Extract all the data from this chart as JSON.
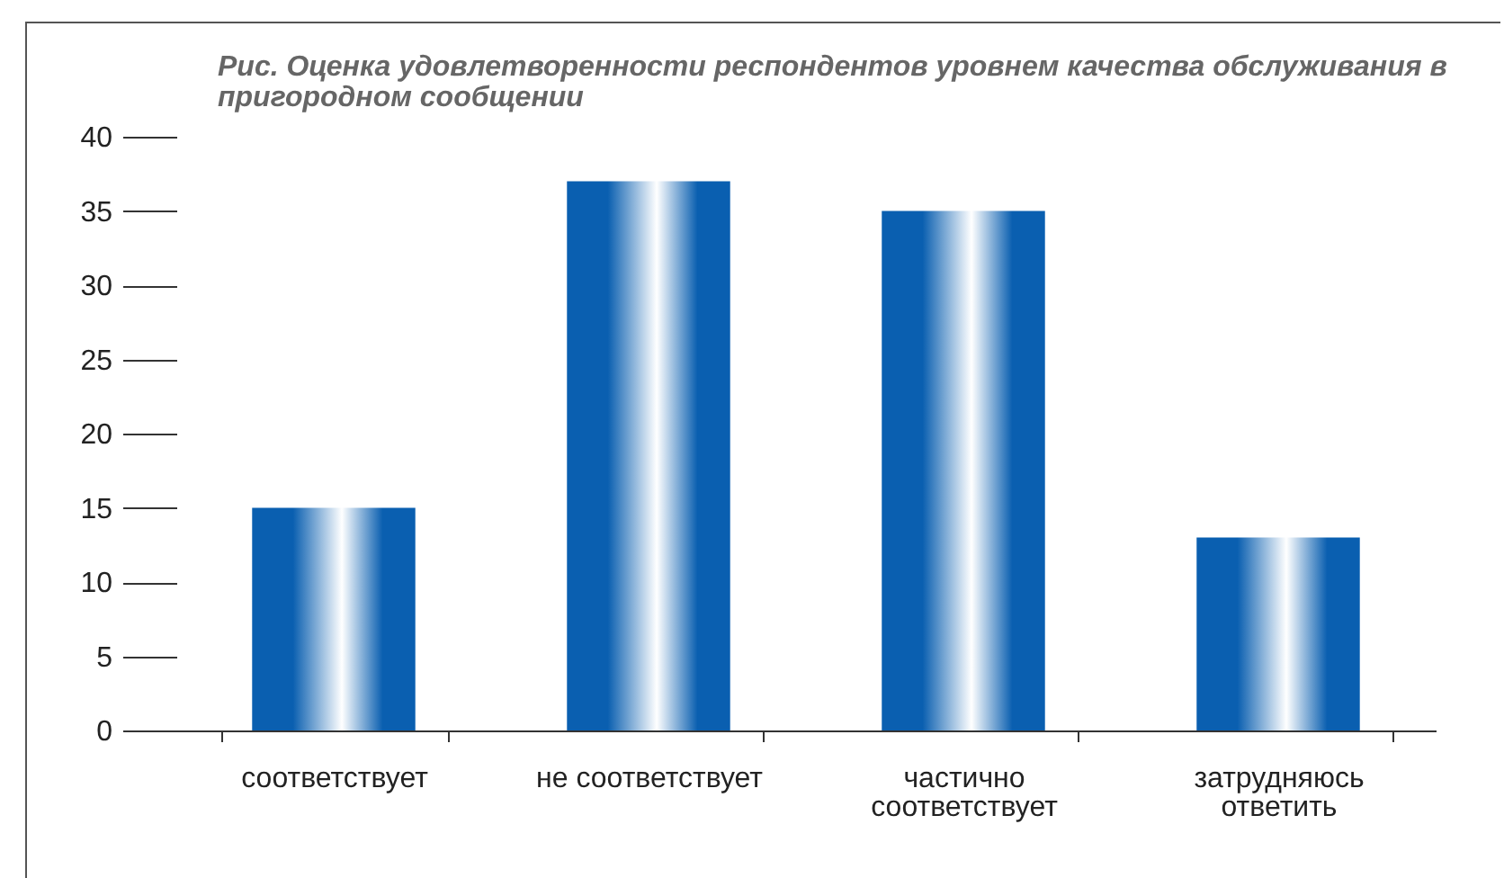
{
  "chart_data": {
    "type": "bar",
    "title": "Рис.  Оценка удовлетворенности респондентов уровнем качества обслуживания в  пригородном сообщении",
    "categories": [
      "соответствует",
      "не соответствует",
      "частично соответствует",
      "затрудняюсь ответить"
    ],
    "values": [
      15,
      37,
      35,
      13
    ],
    "color": "#0a5fb0",
    "ylim": [
      0,
      40
    ],
    "yticks": [
      0,
      5,
      10,
      15,
      20,
      25,
      30,
      35,
      40
    ],
    "grid": false
  }
}
